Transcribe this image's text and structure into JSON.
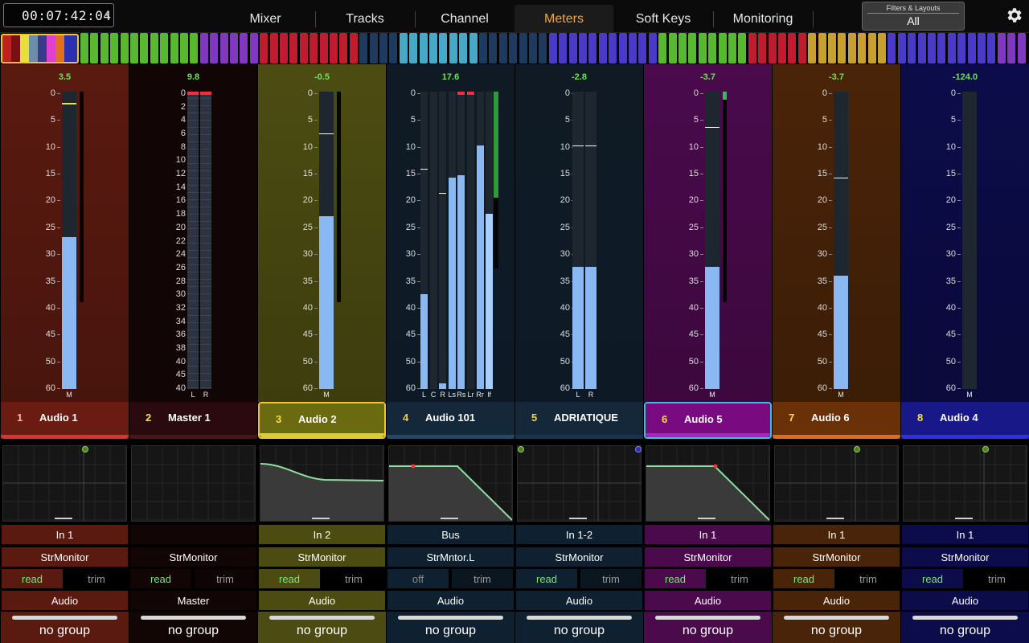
{
  "timecode": "00:07:42:04",
  "tabs": [
    {
      "label": "Mixer",
      "active": false
    },
    {
      "label": "Tracks",
      "active": false
    },
    {
      "label": "Channel",
      "active": false
    },
    {
      "label": "Meters",
      "active": true
    },
    {
      "label": "Soft Keys",
      "active": false
    },
    {
      "label": "Monitoring",
      "active": false
    }
  ],
  "filters": {
    "title": "Filters & Layouts",
    "value": "All"
  },
  "icons": {
    "settings": "gear-icon",
    "timecode_menu": "chevron-down-icon"
  },
  "colors": {
    "accent": "#f4a73a",
    "meter_fill": "#8ab8f2",
    "level_text": "#72e05a"
  },
  "meter_scale_standard": [
    "0",
    "5",
    "10",
    "15",
    "20",
    "25",
    "30",
    "35",
    "40",
    "45",
    "50",
    "60"
  ],
  "meter_scale_master": [
    "0",
    "2",
    "4",
    "6",
    "8",
    "10",
    "12",
    "14",
    "16",
    "18",
    "20",
    "22",
    "24",
    "26",
    "28",
    "30",
    "32",
    "34",
    "36",
    "38",
    "40",
    "45",
    "40"
  ],
  "strips": [
    {
      "num": "1",
      "name": "Audio 1",
      "level": "3.5",
      "channels": [
        "M"
      ],
      "input": "In 1",
      "output": "StrMonitor",
      "auto": "read",
      "trim": "trim",
      "type": "Audio",
      "group": "no group",
      "color": "#5a1a10",
      "bar": "#d8342a"
    },
    {
      "num": "2",
      "name": "Master 1",
      "level": "9.8",
      "channels": [
        "L",
        "R"
      ],
      "input": "",
      "output": "StrMonitor",
      "auto": "read",
      "trim": "trim",
      "type": "Master",
      "group": "no group",
      "color": "#1a0708",
      "bar": "#4a1418"
    },
    {
      "num": "3",
      "name": "Audio 2",
      "level": "-0.5",
      "channels": [
        "M"
      ],
      "input": "In 2",
      "output": "StrMonitor",
      "auto": "read",
      "trim": "trim",
      "type": "Audio",
      "group": "no group",
      "color": "#4c4c12",
      "bar": "#d8d030"
    },
    {
      "num": "4",
      "name": "Audio 101",
      "level": "17.6",
      "channels": [
        "L",
        "C",
        "R",
        "Ls",
        "Rs",
        "Lr",
        "Rr",
        "lf"
      ],
      "input": "Bus",
      "output": "StrMntor.L",
      "auto": "off",
      "trim": "trim",
      "type": "Audio",
      "group": "no group",
      "color": "#0f1a24",
      "bar": "#1e4a70"
    },
    {
      "num": "5",
      "name": "ADRIATIQUE",
      "level": "-2.8",
      "channels": [
        "L",
        "R"
      ],
      "input": "In 1-2",
      "output": "StrMonitor",
      "auto": "read",
      "trim": "trim",
      "type": "Audio",
      "group": "no group",
      "color": "#0d1c28",
      "bar": "#163650"
    },
    {
      "num": "6",
      "name": "Audio 5",
      "level": "-3.7",
      "channels": [
        "M"
      ],
      "input": "In 1",
      "output": "StrMonitor",
      "auto": "read",
      "trim": "trim",
      "type": "Audio",
      "group": "no group",
      "color": "#4a0a4c",
      "bar": "#b020c0"
    },
    {
      "num": "7",
      "name": "Audio 6",
      "level": "-3.7",
      "channels": [
        "M"
      ],
      "input": "In 1",
      "output": "StrMonitor",
      "auto": "read",
      "trim": "trim",
      "type": "Audio",
      "group": "no group",
      "color": "#4a2408",
      "bar": "#e06a20"
    },
    {
      "num": "8",
      "name": "Audio 4",
      "level": "-124.0",
      "channels": [
        "M"
      ],
      "input": "In 1",
      "output": "StrMonitor",
      "auto": "read",
      "trim": "trim",
      "type": "Audio",
      "group": "no group",
      "color": "#0c0c4a",
      "bar": "#3030e0"
    }
  ]
}
